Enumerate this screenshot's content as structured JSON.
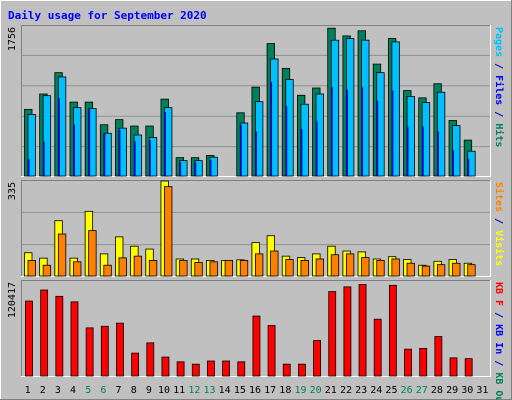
{
  "title": "Daily usage for September 2020",
  "panels": {
    "top": {
      "ymax_label": "1756",
      "axis_labels": [
        {
          "text": "Hits",
          "color": "#00805c"
        },
        {
          "text": " / ",
          "color": "#0000c0"
        },
        {
          "text": "Files",
          "color": "#0000ff"
        },
        {
          "text": " / ",
          "color": "#0000c0"
        },
        {
          "text": "Pages",
          "color": "#00c0ff"
        }
      ]
    },
    "middle": {
      "ymax_label": "335",
      "axis_labels": [
        {
          "text": "Visits",
          "color": "#ffff00"
        },
        {
          "text": " / ",
          "color": "#0000c0"
        },
        {
          "text": "Sites",
          "color": "#ff8000"
        }
      ]
    },
    "bottom": {
      "ymax_label": "120417",
      "axis_labels": [
        {
          "text": "KB Out",
          "color": "#00805c"
        },
        {
          "text": " / ",
          "color": "#0000c0"
        },
        {
          "text": "KB In",
          "color": "#0000ff"
        },
        {
          "text": " / ",
          "color": "#0000c0"
        },
        {
          "text": "KB F",
          "color": "#ff0000"
        }
      ]
    }
  },
  "x_labels": [
    {
      "day": "1",
      "color": "#000000"
    },
    {
      "day": "2",
      "color": "#000000"
    },
    {
      "day": "3",
      "color": "#000000"
    },
    {
      "day": "4",
      "color": "#000000"
    },
    {
      "day": "5",
      "color": "#00805c"
    },
    {
      "day": "6",
      "color": "#00805c"
    },
    {
      "day": "7",
      "color": "#000000"
    },
    {
      "day": "8",
      "color": "#000000"
    },
    {
      "day": "9",
      "color": "#000000"
    },
    {
      "day": "10",
      "color": "#000000"
    },
    {
      "day": "11",
      "color": "#000000"
    },
    {
      "day": "12",
      "color": "#00805c"
    },
    {
      "day": "13",
      "color": "#00805c"
    },
    {
      "day": "14",
      "color": "#000000"
    },
    {
      "day": "15",
      "color": "#000000"
    },
    {
      "day": "16",
      "color": "#000000"
    },
    {
      "day": "17",
      "color": "#000000"
    },
    {
      "day": "18",
      "color": "#000000"
    },
    {
      "day": "19",
      "color": "#00805c"
    },
    {
      "day": "20",
      "color": "#00805c"
    },
    {
      "day": "21",
      "color": "#000000"
    },
    {
      "day": "22",
      "color": "#000000"
    },
    {
      "day": "23",
      "color": "#000000"
    },
    {
      "day": "24",
      "color": "#000000"
    },
    {
      "day": "25",
      "color": "#000000"
    },
    {
      "day": "26",
      "color": "#00805c"
    },
    {
      "day": "27",
      "color": "#00805c"
    },
    {
      "day": "28",
      "color": "#000000"
    },
    {
      "day": "29",
      "color": "#000000"
    },
    {
      "day": "30",
      "color": "#000000"
    },
    {
      "day": "31",
      "color": "#000000"
    }
  ],
  "colors": {
    "background": "#c0c0c0",
    "title": "#0000ff",
    "hits": "#00805c",
    "files": "#0000ff",
    "pages": "#00c0ff",
    "visits": "#ffff00",
    "sites": "#ff8000",
    "kbout": "#00805c",
    "kbin": "#0000ff",
    "kbf": "#ff0000"
  },
  "chart_data": [
    {
      "type": "bar",
      "categories": [
        "1",
        "2",
        "3",
        "4",
        "5",
        "6",
        "7",
        "8",
        "9",
        "10",
        "11",
        "12",
        "13",
        "14",
        "15",
        "16",
        "17",
        "18",
        "19",
        "20",
        "21",
        "22",
        "23",
        "24",
        "25",
        "26",
        "27",
        "28",
        "29",
        "30"
      ],
      "ylim": [
        0,
        1756
      ],
      "series": [
        {
          "name": "Hits",
          "values": [
            780,
            960,
            1210,
            865,
            865,
            600,
            660,
            585,
            585,
            900,
            215,
            215,
            240,
            0,
            740,
            1040,
            1550,
            1260,
            945,
            1030,
            1730,
            1640,
            1700,
            1310,
            1610,
            1000,
            915,
            1080,
            650,
            420
          ]
        },
        {
          "name": "Files",
          "values": [
            200,
            400,
            910,
            600,
            780,
            500,
            540,
            410,
            420,
            750,
            160,
            160,
            185,
            0,
            600,
            520,
            1100,
            820,
            550,
            640,
            1040,
            1010,
            1040,
            880,
            1000,
            580,
            580,
            520,
            300,
            200
          ]
        },
        {
          "name": "Pages",
          "values": [
            720,
            940,
            1160,
            800,
            790,
            500,
            560,
            480,
            450,
            800,
            180,
            180,
            220,
            0,
            620,
            870,
            1370,
            1130,
            840,
            960,
            1590,
            1610,
            1590,
            1210,
            1570,
            930,
            860,
            980,
            590,
            290
          ]
        }
      ]
    },
    {
      "type": "bar",
      "categories": [
        "1",
        "2",
        "3",
        "4",
        "5",
        "6",
        "7",
        "8",
        "9",
        "10",
        "11",
        "12",
        "13",
        "14",
        "15",
        "16",
        "17",
        "18",
        "19",
        "20",
        "21",
        "22",
        "23",
        "24",
        "25",
        "26",
        "27",
        "28",
        "29",
        "30"
      ],
      "ylim": [
        0,
        335
      ],
      "series": [
        {
          "name": "Visits",
          "values": [
            82,
            63,
            195,
            63,
            228,
            78,
            138,
            105,
            95,
            335,
            60,
            60,
            55,
            55,
            57,
            118,
            142,
            70,
            65,
            78,
            105,
            88,
            85,
            60,
            68,
            58,
            38,
            52,
            58,
            45
          ]
        },
        {
          "name": "Sites",
          "values": [
            55,
            38,
            148,
            50,
            160,
            38,
            64,
            70,
            55,
            315,
            55,
            48,
            50,
            55,
            55,
            78,
            88,
            58,
            55,
            60,
            75,
            78,
            65,
            55,
            60,
            45,
            35,
            40,
            45,
            40
          ]
        }
      ]
    },
    {
      "type": "bar",
      "categories": [
        "1",
        "2",
        "3",
        "4",
        "5",
        "6",
        "7",
        "8",
        "9",
        "10",
        "11",
        "12",
        "13",
        "14",
        "15",
        "16",
        "17",
        "18",
        "19",
        "20",
        "21",
        "22",
        "23",
        "24",
        "25",
        "26",
        "27",
        "28",
        "29",
        "30"
      ],
      "ylim": [
        0,
        120417
      ],
      "series": [
        {
          "name": "KB F",
          "values": [
            95000,
            109000,
            101000,
            94000,
            61000,
            63000,
            67000,
            29000,
            42000,
            24000,
            18000,
            15000,
            19000,
            19000,
            18000,
            76000,
            64000,
            15000,
            15000,
            45000,
            107000,
            113000,
            116000,
            72000,
            115000,
            34000,
            35000,
            50000,
            23000,
            22000
          ]
        }
      ]
    }
  ]
}
